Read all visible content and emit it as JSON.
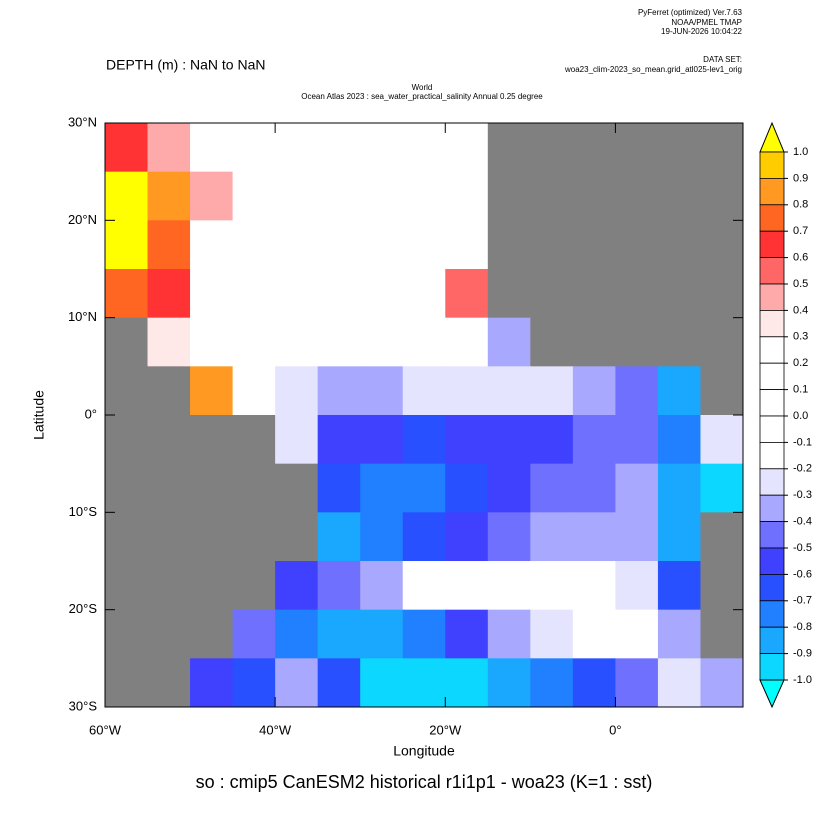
{
  "chart_data": {
    "type": "heatmap",
    "header": [
      "PyFerret (optimized) Ver.7.63",
      "NOAA/PMEL TMAP",
      "19-JUN-2026 10:04:22"
    ],
    "dataset_label": "DATA SET:",
    "dataset": "woa23_clim-2023_so_mean.grid_atl025-lev1_orig",
    "depth_label": "DEPTH (m) : NaN to NaN",
    "title": "World",
    "subtitle": "Ocean Atlas 2023 : sea_water_practical_salinity Annual  0.25 degree",
    "x_label": "Longitude",
    "y_label": "Latitude",
    "caption": "so : cmip5 CanESM2 historical r1i1p1 - woa23  (K=1 : sst)",
    "xlim": [
      -60,
      15
    ],
    "ylim": [
      -30,
      30
    ],
    "xticks": [
      {
        "value": -60,
        "label": "60°W"
      },
      {
        "value": -40,
        "label": "40°W"
      },
      {
        "value": -20,
        "label": "20°W"
      },
      {
        "value": 0,
        "label": "0°"
      }
    ],
    "yticks": [
      {
        "value": -30,
        "label": "30°S"
      },
      {
        "value": -20,
        "label": "20°S"
      },
      {
        "value": -10,
        "label": "10°S"
      },
      {
        "value": 0,
        "label": "0°"
      },
      {
        "value": 10,
        "label": "10°N"
      },
      {
        "value": 20,
        "label": "20°N"
      },
      {
        "value": 30,
        "label": "30°N"
      }
    ],
    "x": [
      -60,
      -55,
      -50,
      -45,
      -40,
      -35,
      -30,
      -25,
      -20,
      -15,
      -10,
      -5,
      0,
      5,
      10,
      15
    ],
    "y": [
      30,
      25,
      20,
      15,
      10,
      5,
      0,
      -5,
      -10,
      -15,
      -20,
      -25,
      -30
    ],
    "values": [
      [
        0.6,
        0.4,
        0.0,
        0.0,
        0.0,
        0.0,
        0.0,
        0.0,
        0.0,
        null,
        null,
        null,
        null,
        null,
        null
      ],
      [
        1.0,
        0.8,
        0.4,
        0.0,
        0.0,
        0.0,
        0.0,
        0.0,
        0.2,
        null,
        null,
        null,
        null,
        null,
        null
      ],
      [
        1.0,
        0.7,
        0.0,
        0.0,
        0.0,
        0.0,
        0.0,
        0.0,
        0.1,
        null,
        null,
        null,
        null,
        null,
        null
      ],
      [
        0.7,
        0.6,
        0.2,
        0.0,
        0.0,
        0.0,
        0.0,
        0.0,
        0.5,
        null,
        null,
        null,
        null,
        null,
        null
      ],
      [
        null,
        0.3,
        0.0,
        0.0,
        0.0,
        0.0,
        0.0,
        0.0,
        -0.1,
        -0.4,
        null,
        null,
        null,
        null,
        null
      ],
      [
        null,
        null,
        0.8,
        -0.2,
        -0.3,
        -0.4,
        -0.4,
        -0.3,
        -0.3,
        -0.3,
        -0.3,
        -0.4,
        -0.5,
        -0.9,
        null
      ],
      [
        null,
        null,
        null,
        null,
        -0.3,
        -0.6,
        -0.6,
        -0.7,
        -0.6,
        -0.6,
        -0.6,
        -0.5,
        -0.5,
        -0.8,
        -0.3
      ],
      [
        null,
        null,
        null,
        null,
        null,
        -0.7,
        -0.8,
        -0.8,
        -0.7,
        -0.6,
        -0.5,
        -0.5,
        -0.4,
        -0.9,
        -1.0
      ],
      [
        null,
        null,
        null,
        null,
        null,
        -0.9,
        -0.8,
        -0.7,
        -0.6,
        -0.5,
        -0.4,
        -0.4,
        -0.4,
        -0.9,
        null
      ],
      [
        null,
        null,
        null,
        null,
        -0.6,
        -0.5,
        -0.4,
        -0.2,
        0.0,
        0.0,
        0.0,
        0.0,
        -0.3,
        -0.7,
        null
      ],
      [
        null,
        null,
        null,
        -0.5,
        -0.8,
        -0.9,
        -0.9,
        -0.8,
        -0.6,
        -0.4,
        -0.3,
        -0.1,
        0.0,
        -0.4,
        null
      ],
      [
        null,
        null,
        -0.6,
        -0.7,
        -0.4,
        -0.7,
        -1.0,
        -1.0,
        -1.0,
        -0.9,
        -0.8,
        -0.7,
        -0.5,
        -0.3,
        -0.4
      ]
    ],
    "land_color": "#808080",
    "levels": [
      {
        "value": 1,
        "label": "1.0"
      },
      0.9,
      0.8,
      0.7,
      0.6,
      0.5,
      0.4,
      0.3,
      0.2,
      0.1,
      {
        "value": 0,
        "label": "0.0"
      },
      -0.1,
      -0.2,
      -0.3,
      -0.4,
      -0.5,
      -0.6,
      -0.7,
      -0.8,
      -0.9,
      {
        "value": -1,
        "label": "-1.0"
      }
    ],
    "colors": [
      "#ffff00",
      "#ffcc00",
      "#ff9922",
      "#ff6622",
      "#ff3333",
      "#ff6666",
      "#ffaaaa",
      "#ffe8e8",
      "#ffffff",
      "#ffffff",
      "#ffffff",
      "#ffffff",
      "#ffffff",
      "#e4e4ff",
      "#a8a8ff",
      "#7070ff",
      "#4040ff",
      "#2850ff",
      "#2080ff",
      "#1aa8ff",
      "#0cd8ff",
      "#00ffff"
    ]
  }
}
